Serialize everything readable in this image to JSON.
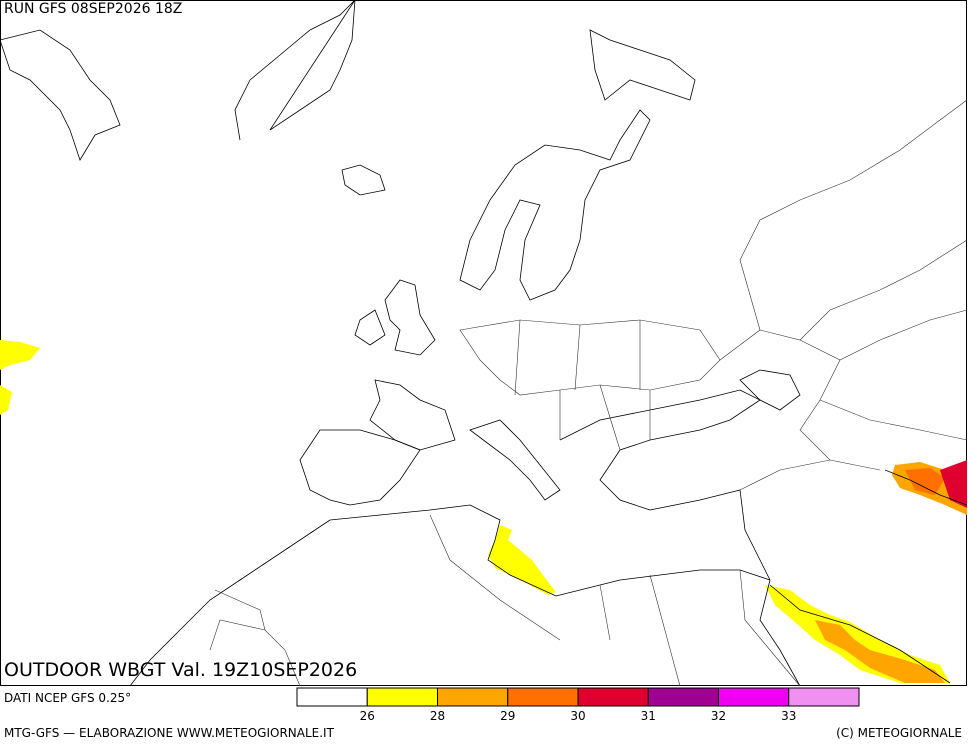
{
  "header": {
    "run": "RUN GFS 08SEP2026 18Z"
  },
  "map": {
    "title": "OUTDOOR WBGT Val. 19Z10SEP2026"
  },
  "legend": {
    "colors": [
      "#ffffff",
      "#ffff00",
      "#ffa500",
      "#ff7000",
      "#e00030",
      "#a00090",
      "#f000f0",
      "#f090f0"
    ],
    "labels": [
      "26",
      "28",
      "29",
      "30",
      "31",
      "32",
      "33"
    ]
  },
  "footer": {
    "source": "DATI NCEP GFS 0.25°",
    "credits": "MTG-GFS — ELABORAZIONE WWW.METEOGIORNALE.IT",
    "copyright": "(C) METEOGIORNALE"
  }
}
